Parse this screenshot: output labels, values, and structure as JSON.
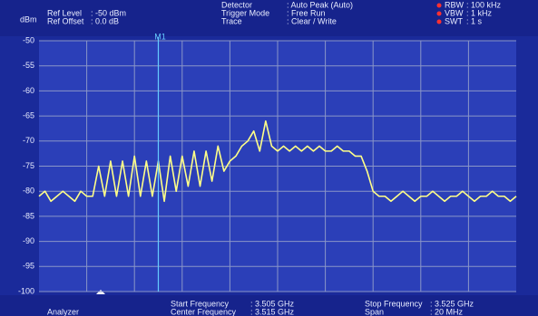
{
  "header": {
    "unit": "dBm",
    "left": [
      {
        "label": "Ref Level",
        "value": ": -50   dBm"
      },
      {
        "label": "Ref Offset",
        "value": ":   0.0 dB"
      }
    ],
    "middle": [
      {
        "label": "Detector",
        "value": ": Auto Peak (Auto)"
      },
      {
        "label": "Trigger Mode",
        "value": ": Free Run"
      },
      {
        "label": "Trace",
        "value": ": Clear / Write"
      }
    ],
    "right": [
      {
        "label": "RBW",
        "value": ": 100 kHz"
      },
      {
        "label": "VBW",
        "value": ":    1 kHz"
      },
      {
        "label": "SWT",
        "value": ":    1  s"
      }
    ]
  },
  "footer": {
    "mode": "Analyzer",
    "left": [
      {
        "label": "Start Frequency",
        "value": ": 3.505 GHz"
      },
      {
        "label": "Center Frequency",
        "value": ": 3.515 GHz"
      }
    ],
    "right": [
      {
        "label": "Stop Frequency",
        "value": ":  3.525 GHz"
      },
      {
        "label": "Span",
        "value": ":    20     MHz"
      }
    ]
  },
  "chart_data": {
    "type": "line",
    "x": [
      3.505,
      3.50525,
      3.5055,
      3.50575,
      3.506,
      3.50625,
      3.5065,
      3.50675,
      3.507,
      3.50725,
      3.5075,
      3.50775,
      3.508,
      3.50825,
      3.5085,
      3.50875,
      3.509,
      3.50925,
      3.5095,
      3.50975,
      3.51,
      3.51025,
      3.5105,
      3.51075,
      3.511,
      3.51125,
      3.5115,
      3.51175,
      3.512,
      3.51225,
      3.5125,
      3.51275,
      3.513,
      3.51325,
      3.5135,
      3.51375,
      3.514,
      3.51425,
      3.5145,
      3.51475,
      3.515,
      3.51525,
      3.5155,
      3.51575,
      3.516,
      3.51625,
      3.5165,
      3.51675,
      3.517,
      3.51725,
      3.5175,
      3.51775,
      3.518,
      3.51825,
      3.5185,
      3.51875,
      3.519,
      3.51925,
      3.5195,
      3.51975,
      3.52,
      3.52025,
      3.5205,
      3.52075,
      3.521,
      3.52125,
      3.5215,
      3.52175,
      3.522,
      3.52225,
      3.5225,
      3.52275,
      3.523,
      3.52325,
      3.5235,
      3.52375,
      3.524,
      3.52425,
      3.5245,
      3.52475,
      3.525
    ],
    "series": [
      {
        "color": "#ffff88",
        "values": [
          -81,
          -80,
          -82,
          -81,
          -80,
          -81,
          -82,
          -80,
          -81,
          -81,
          -75,
          -81,
          -74,
          -81,
          -74,
          -81,
          -73,
          -81,
          -74,
          -81,
          -74,
          -82,
          -73,
          -80,
          -73,
          -79,
          -72,
          -79,
          -72,
          -78,
          -71,
          -76,
          -74,
          -73,
          -71,
          -70,
          -68,
          -72,
          -66,
          -71,
          -72,
          -71,
          -72,
          -71,
          -72,
          -71,
          -72,
          -71,
          -72,
          -72,
          -71,
          -72,
          -72,
          -73,
          -73,
          -76,
          -80,
          -81,
          -81,
          -82,
          -81,
          -80,
          -81,
          -82,
          -81,
          -81,
          -80,
          -81,
          -82,
          -81,
          -81,
          -80,
          -81,
          -82,
          -81,
          -81,
          -80,
          -81,
          -81,
          -82,
          -81
        ]
      }
    ],
    "xlim": [
      3.505,
      3.525
    ],
    "xticks": [
      3.507,
      3.509,
      3.511,
      3.513,
      3.515,
      3.517,
      3.519,
      3.521,
      3.523
    ],
    "ylim": [
      -100,
      -50
    ],
    "yticks": [
      -50,
      -55,
      -60,
      -65,
      -70,
      -75,
      -80,
      -85,
      -90,
      -95,
      -100
    ],
    "grid": true,
    "marker": {
      "label": "M1",
      "x": 3.51,
      "color": "#66ccff"
    }
  }
}
